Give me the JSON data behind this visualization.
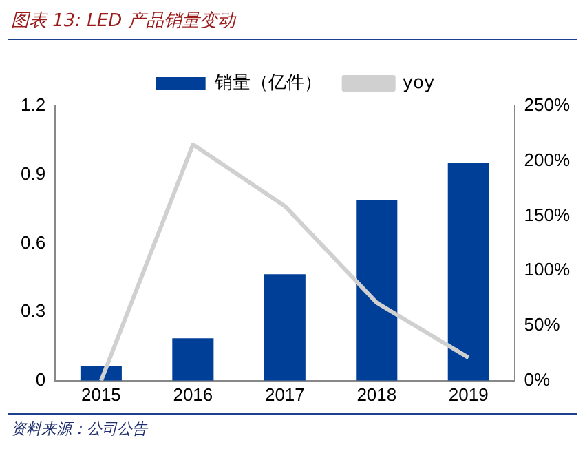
{
  "chart_data": {
    "type": "bar",
    "title": "图表 13: LED 产品销量变动",
    "categories": [
      "2015",
      "2016",
      "2017",
      "2018",
      "2019"
    ],
    "series": [
      {
        "name": "销量（亿件）",
        "color": "#003f98",
        "values": [
          0.065,
          0.185,
          0.465,
          0.79,
          0.95
        ]
      },
      {
        "name": "yoy",
        "type": "line",
        "color": "#d0d0d0",
        "axis": "y2",
        "marker": "none",
        "values": [
          0,
          215,
          159,
          71,
          21
        ]
      }
    ],
    "ylim": [
      0,
      1.2
    ],
    "yticks": [
      0,
      0.3,
      0.6,
      0.9,
      1.2
    ],
    "y2lim": [
      0,
      250
    ],
    "y2ticks": [
      {
        "value": 0,
        "label": "0%"
      },
      {
        "value": 50,
        "label": "50%"
      },
      {
        "value": 100,
        "label": "100%"
      },
      {
        "value": 150,
        "label": "150%"
      },
      {
        "value": 200,
        "label": "200%"
      },
      {
        "value": 250,
        "label": "250%"
      }
    ],
    "grid": false,
    "legend": "top",
    "annotations": [
      "资料来源：公司公告"
    ]
  }
}
